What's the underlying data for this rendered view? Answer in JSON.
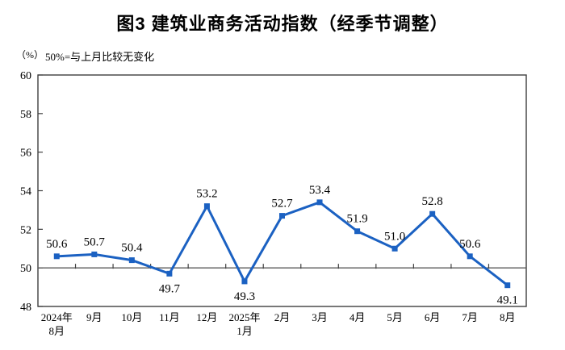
{
  "title": "图3 建筑业商务活动指数（经季节调整）",
  "unit_label": "（%）",
  "axis_note": "50%=与上月比较无变化",
  "colors": {
    "line": "#1b61c2",
    "marker": "#1b61c2",
    "frame": "#3f3f3f",
    "ref_line": "#595959",
    "text": "#000000",
    "background": "#ffffff"
  },
  "chart_data": {
    "type": "line",
    "title": "图3 建筑业商务活动指数（经季节调整）",
    "ylabel": "（%）",
    "annotation": "50%=与上月比较无变化",
    "categories": [
      [
        "2024年",
        "8月"
      ],
      [
        "9月"
      ],
      [
        "10月"
      ],
      [
        "11月"
      ],
      [
        "12月"
      ],
      [
        "2025年",
        "1月"
      ],
      [
        "2月"
      ],
      [
        "3月"
      ],
      [
        "4月"
      ],
      [
        "5月"
      ],
      [
        "6月"
      ],
      [
        "7月"
      ],
      [
        "8月"
      ]
    ],
    "values": [
      50.6,
      50.7,
      50.4,
      49.7,
      53.2,
      49.3,
      52.7,
      53.4,
      51.9,
      51.0,
      52.8,
      50.6,
      49.1
    ],
    "ylim": [
      48,
      60
    ],
    "yticks": [
      48,
      50,
      52,
      54,
      56,
      58,
      60
    ],
    "reference_value": 50,
    "grid": false,
    "legend": false,
    "marker": "square",
    "label_decimals": 1
  }
}
